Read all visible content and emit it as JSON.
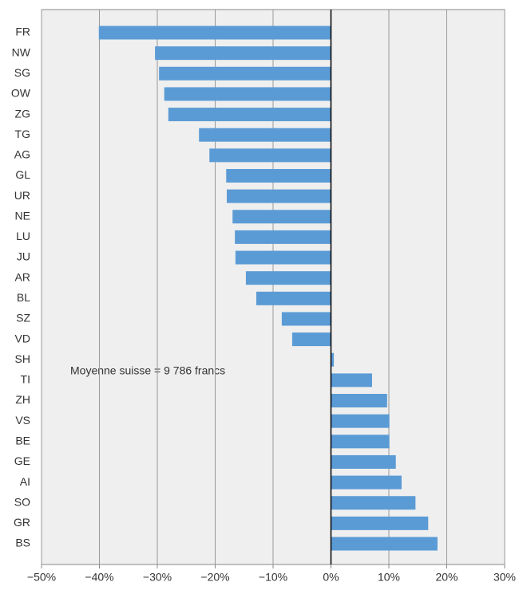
{
  "chart_data": {
    "type": "bar",
    "orientation": "horizontal",
    "annotation": "Moyenne suisse = 9 786 francs",
    "categories": [
      "FR",
      "NW",
      "SG",
      "OW",
      "ZG",
      "TG",
      "AG",
      "GL",
      "UR",
      "NE",
      "LU",
      "JU",
      "AR",
      "BL",
      "SZ",
      "VD",
      "SH",
      "TI",
      "ZH",
      "VS",
      "BE",
      "GE",
      "AI",
      "SO",
      "GR",
      "BS"
    ],
    "values": [
      -40.1,
      -30.4,
      -29.7,
      -28.8,
      -28.1,
      -22.8,
      -21.0,
      -18.1,
      -18.0,
      -17.0,
      -16.6,
      -16.5,
      -14.7,
      -12.9,
      -8.5,
      -6.7,
      0.5,
      7.1,
      9.7,
      10.1,
      10.1,
      11.2,
      12.2,
      14.6,
      16.8,
      18.4
    ],
    "color": "#5b9bd5",
    "xlim": [
      -50,
      30
    ],
    "xticks": [
      {
        "value": -50,
        "label": "−50%"
      },
      {
        "value": -40,
        "label": "−40%"
      },
      {
        "value": -30,
        "label": "−30%"
      },
      {
        "value": -20,
        "label": "−20%"
      },
      {
        "value": -10,
        "label": "−10%"
      },
      {
        "value": 0,
        "label": "0%"
      },
      {
        "value": 10,
        "label": "10%"
      },
      {
        "value": 20,
        "label": "20%"
      },
      {
        "value": 30,
        "label": "30%"
      }
    ],
    "grid": true
  }
}
